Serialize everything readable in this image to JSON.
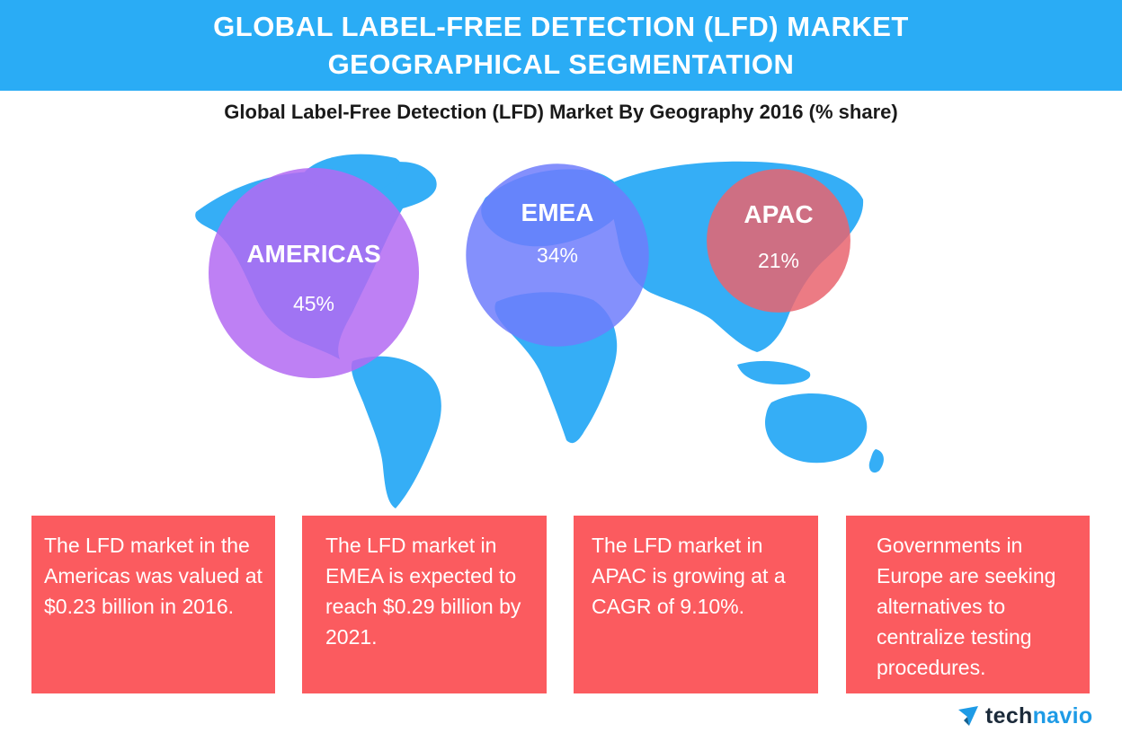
{
  "header": {
    "line1": "GLOBAL LABEL-FREE DETECTION (LFD) MARKET",
    "line2": "GEOGRAPHICAL SEGMENTATION"
  },
  "chart_data": {
    "type": "bubble",
    "title": "Global Label-Free Detection (LFD) Market By Geography 2016 (% share)",
    "categories": [
      "AMERICAS",
      "EMEA",
      "APAC"
    ],
    "values": [
      45,
      34,
      21
    ],
    "value_labels": [
      "45%",
      "34%",
      "21%"
    ],
    "unit": "% share",
    "colors": [
      "#b36af2",
      "#6e7dfb",
      "#e9646f"
    ]
  },
  "cards": [
    "The LFD market in the Americas was valued at $0.23 billion in 2016.",
    "The LFD market in EMEA is expected to reach $0.29 billion by 2021.",
    "The LFD market in APAC is growing at a CAGR of 9.10%.",
    "Governments in Europe are seeking alternatives to centralize testing procedures."
  ],
  "brand": {
    "prefix": "tech",
    "suffix": "navio"
  },
  "colors": {
    "banner": "#2aacf5",
    "map": "#35aef6",
    "card": "#fb5b5f"
  }
}
